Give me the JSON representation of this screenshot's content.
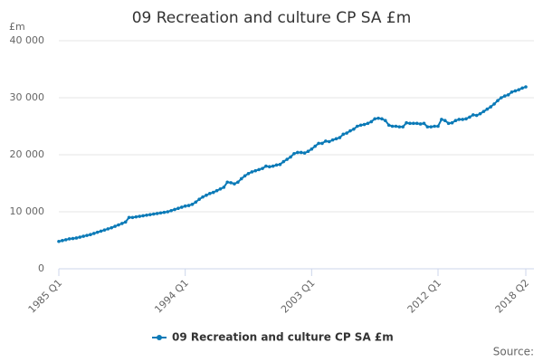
{
  "chart_data": {
    "type": "line",
    "title": "09 Recreation and culture CP SA £m",
    "y_label": "£m",
    "source": "Source:",
    "categories": [
      "1985 Q1",
      null,
      null,
      null,
      null,
      null,
      null,
      null,
      null,
      null,
      null,
      null,
      null,
      null,
      null,
      null,
      null,
      null,
      null,
      null,
      null,
      null,
      null,
      null,
      null,
      null,
      null,
      null,
      null,
      null,
      null,
      null,
      null,
      null,
      null,
      null,
      "1994 Q1",
      null,
      null,
      null,
      null,
      null,
      null,
      null,
      null,
      null,
      null,
      null,
      null,
      null,
      null,
      null,
      null,
      null,
      null,
      null,
      null,
      null,
      null,
      null,
      null,
      null,
      null,
      null,
      null,
      null,
      null,
      null,
      null,
      null,
      null,
      null,
      "2003 Q1",
      null,
      null,
      null,
      null,
      null,
      null,
      null,
      null,
      null,
      null,
      null,
      null,
      null,
      null,
      null,
      null,
      null,
      null,
      null,
      null,
      null,
      null,
      null,
      null,
      null,
      null,
      null,
      null,
      null,
      null,
      null,
      null,
      null,
      null,
      null,
      "2012 Q1",
      null,
      null,
      null,
      null,
      null,
      null,
      null,
      null,
      null,
      null,
      null,
      null,
      null,
      null,
      null,
      null,
      null,
      null,
      null,
      null,
      null,
      null,
      null,
      null,
      "2018 Q2"
    ],
    "series": [
      {
        "name": "09 Recreation and culture CP SA £m",
        "color": "#0b7ab7",
        "values": [
          4800,
          4950,
          5100,
          5250,
          5300,
          5400,
          5550,
          5700,
          5850,
          6000,
          6200,
          6400,
          6600,
          6800,
          7000,
          7200,
          7450,
          7700,
          7950,
          8200,
          9000,
          9000,
          9100,
          9200,
          9300,
          9400,
          9500,
          9600,
          9700,
          9800,
          9900,
          10000,
          10200,
          10400,
          10600,
          10800,
          11000,
          11100,
          11300,
          11700,
          12200,
          12600,
          12900,
          13200,
          13400,
          13700,
          14000,
          14300,
          15200,
          15100,
          14900,
          15200,
          15800,
          16300,
          16700,
          17000,
          17200,
          17400,
          17600,
          18000,
          17900,
          18000,
          18200,
          18300,
          18800,
          19200,
          19600,
          20200,
          20400,
          20400,
          20300,
          20600,
          21000,
          21500,
          22000,
          22000,
          22400,
          22300,
          22600,
          22800,
          23000,
          23600,
          23800,
          24200,
          24500,
          25000,
          25200,
          25300,
          25500,
          25800,
          26300,
          26400,
          26300,
          26000,
          25200,
          25000,
          25000,
          24900,
          24900,
          25600,
          25500,
          25500,
          25500,
          25400,
          25500,
          24900,
          24900,
          25000,
          25000,
          26200,
          26000,
          25500,
          25600,
          26000,
          26200,
          26200,
          26300,
          26600,
          27000,
          26900,
          27200,
          27600,
          28000,
          28400,
          28900,
          29500,
          30000,
          30300,
          30500,
          31000,
          31200,
          31400,
          31700,
          31900
        ]
      }
    ],
    "ylim": [
      0,
      40000
    ],
    "yticks": [
      0,
      {
        "value": 10000,
        "label": "10 000"
      },
      {
        "value": 20000,
        "label": "20 000"
      },
      {
        "value": 30000,
        "label": "30 000"
      },
      {
        "value": 40000,
        "label": "40 000"
      }
    ],
    "grid": true
  }
}
